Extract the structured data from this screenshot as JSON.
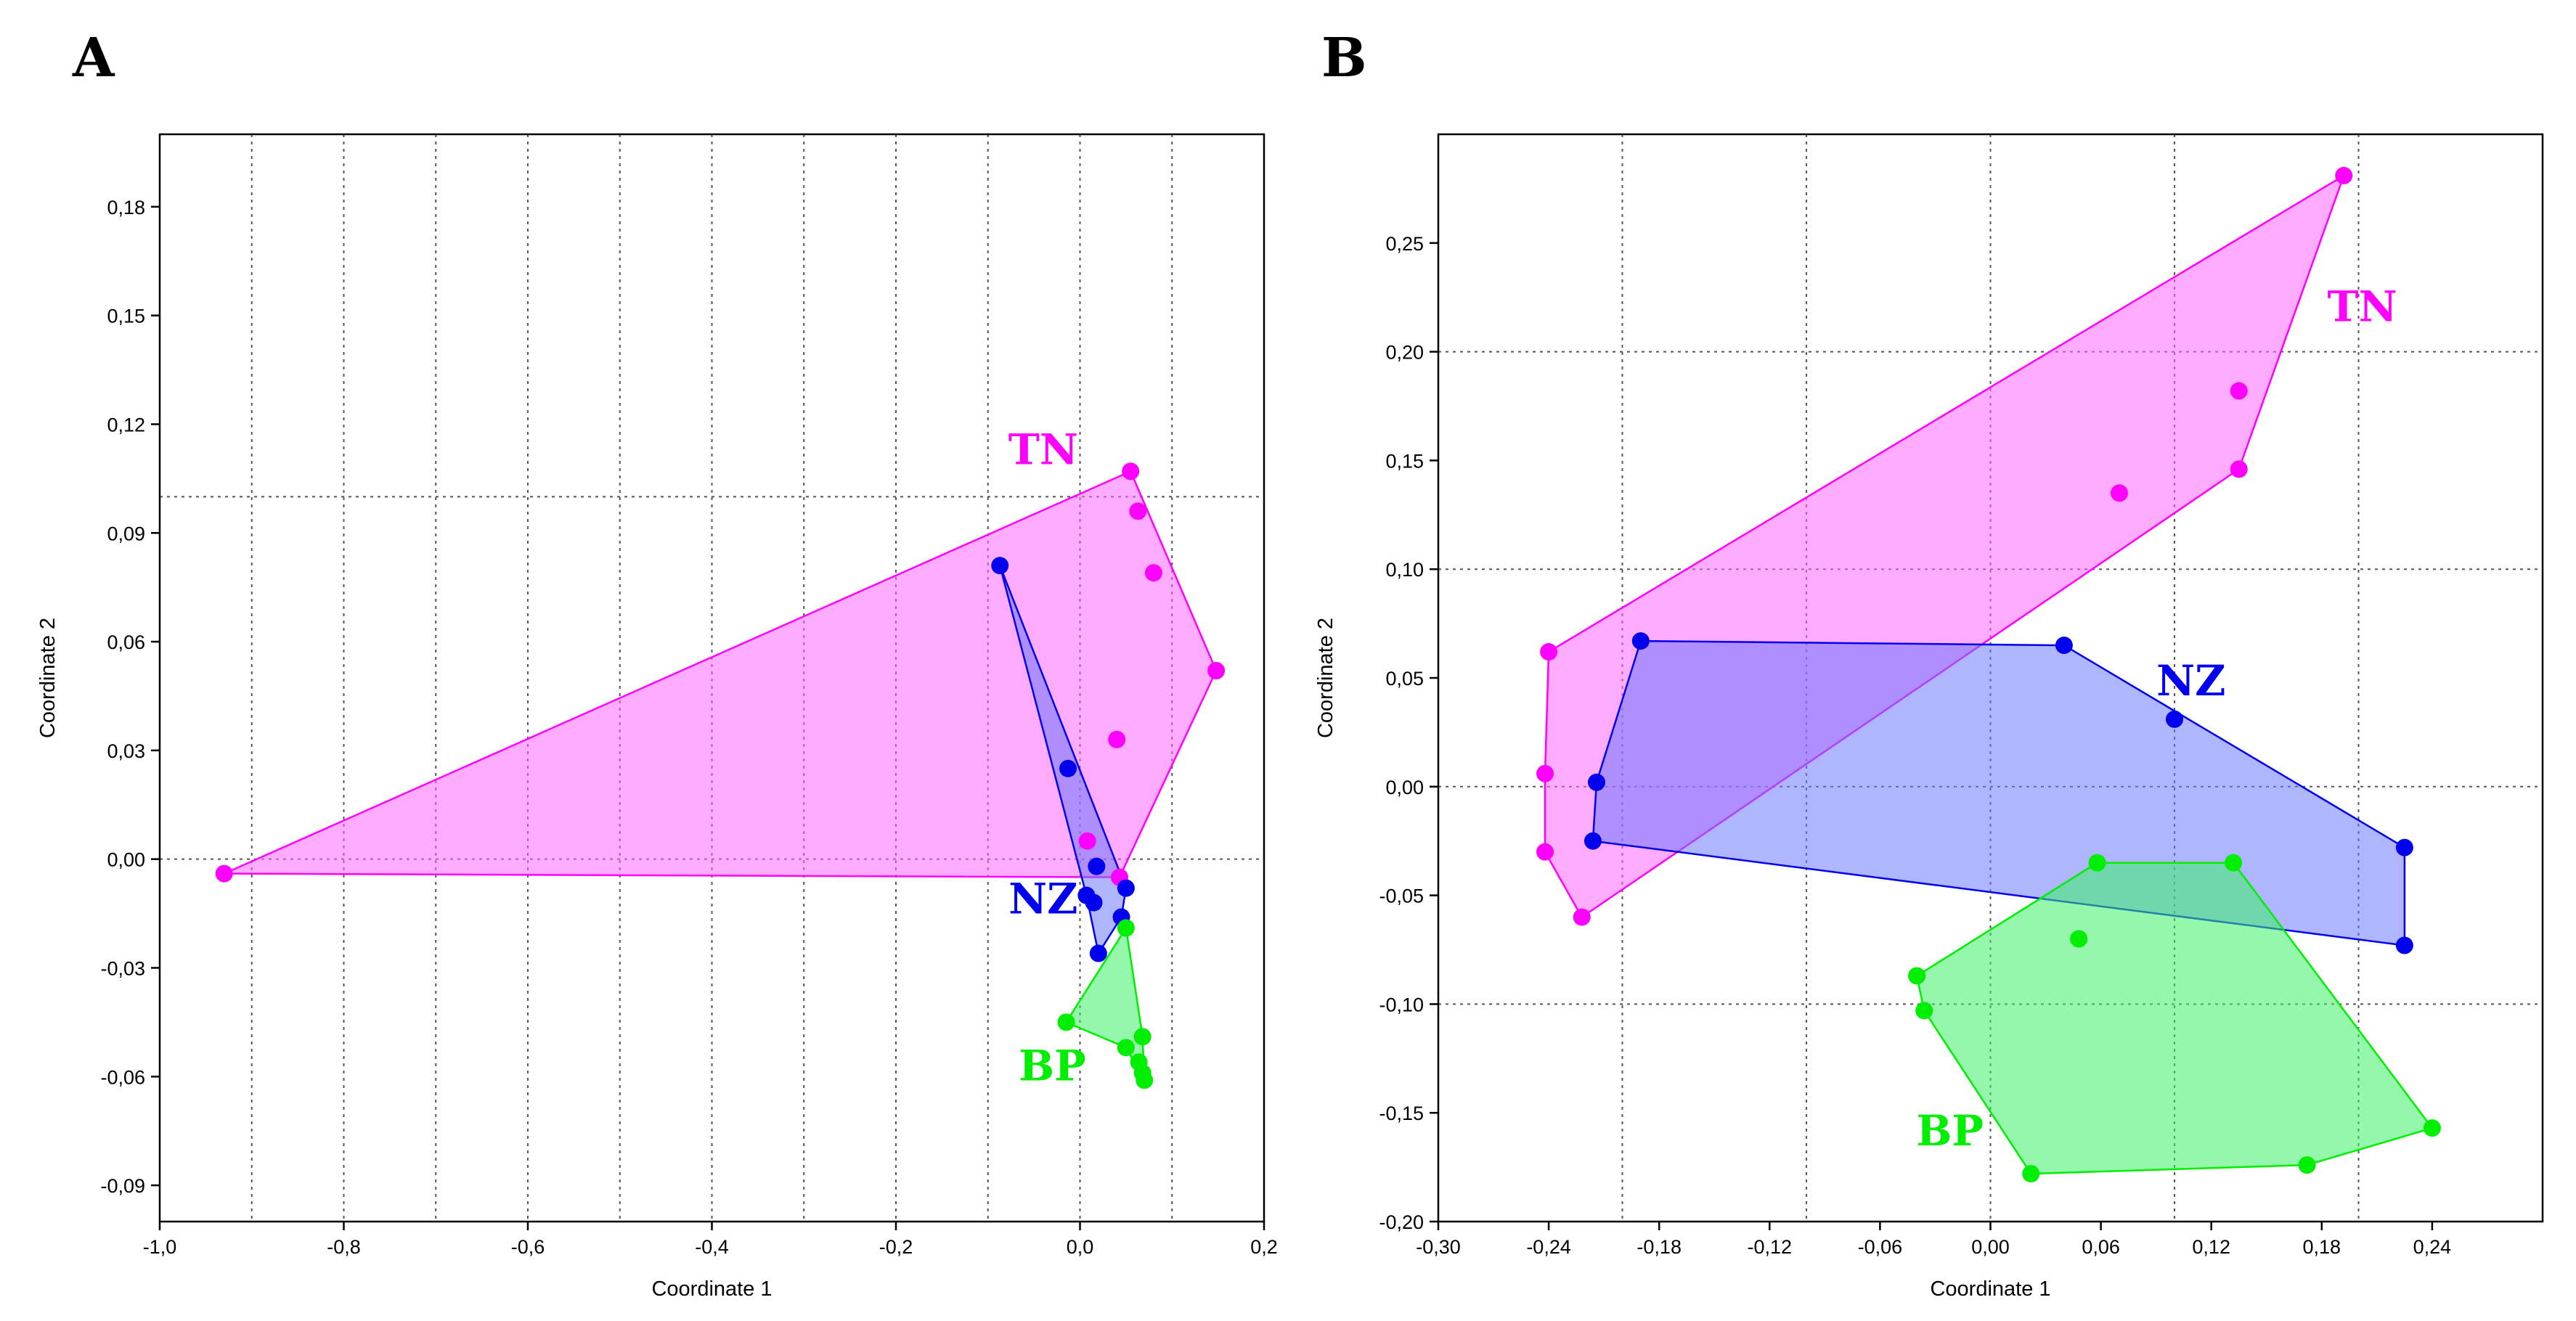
{
  "chart_data": [
    {
      "type": "scatter",
      "panel": "A",
      "xlabel": "Coordinate 1",
      "ylabel": "Coordinate 2",
      "xlim": [
        -1.0,
        0.2
      ],
      "ylim": [
        -0.1,
        0.2
      ],
      "x_ticks": [
        -1.0,
        -0.8,
        -0.6,
        -0.4,
        -0.2,
        0.0,
        0.2
      ],
      "x_tick_labels": [
        "-1,0",
        "-0,8",
        "-0,6",
        "-0,4",
        "-0,2",
        "0,0",
        "0,2"
      ],
      "y_ticks": [
        -0.09,
        -0.06,
        -0.03,
        0.0,
        0.03,
        0.06,
        0.09,
        0.12,
        0.15,
        0.18
      ],
      "y_tick_labels": [
        "-0,09",
        "-0,06",
        "-0,03",
        "0,00",
        "0,03",
        "0,06",
        "0,09",
        "0,12",
        "0,15",
        "0,18"
      ],
      "grid_x": [
        -0.9,
        -0.8,
        -0.7,
        -0.6,
        -0.5,
        -0.4,
        -0.3,
        -0.2,
        -0.1,
        0.0,
        0.1
      ],
      "grid_y": [
        0.0,
        0.1
      ],
      "series": [
        {
          "name": "TN",
          "color": "#ff00ff",
          "fill": "#ff66ff",
          "label_at": [
            -0.04,
            0.109
          ],
          "points": [
            [
              -0.93,
              -0.004
            ],
            [
              0.055,
              0.107
            ],
            [
              0.063,
              0.096
            ],
            [
              0.08,
              0.079
            ],
            [
              0.148,
              0.052
            ],
            [
              0.04,
              0.033
            ],
            [
              0.008,
              0.005
            ],
            [
              0.043,
              -0.005
            ]
          ],
          "hull": [
            [
              -0.93,
              -0.004
            ],
            [
              0.055,
              0.107
            ],
            [
              0.148,
              0.052
            ],
            [
              0.043,
              -0.005
            ]
          ]
        },
        {
          "name": "NZ",
          "color": "#0000ee",
          "fill": "#6e78ff",
          "label_at": [
            -0.04,
            -0.015
          ],
          "points": [
            [
              -0.087,
              0.081
            ],
            [
              -0.013,
              0.025
            ],
            [
              0.018,
              -0.002
            ],
            [
              0.05,
              -0.008
            ],
            [
              0.007,
              -0.01
            ],
            [
              0.015,
              -0.012
            ],
            [
              0.045,
              -0.016
            ],
            [
              0.02,
              -0.026
            ]
          ],
          "hull": [
            [
              -0.087,
              0.081
            ],
            [
              0.05,
              -0.008
            ],
            [
              0.045,
              -0.016
            ],
            [
              0.02,
              -0.026
            ],
            [
              0.007,
              -0.01
            ]
          ]
        },
        {
          "name": "BP",
          "color": "#00ee00",
          "fill": "#3cf068",
          "label_at": [
            -0.03,
            -0.061
          ],
          "points": [
            [
              0.05,
              -0.019
            ],
            [
              -0.015,
              -0.045
            ],
            [
              0.068,
              -0.049
            ],
            [
              0.05,
              -0.052
            ],
            [
              0.064,
              -0.056
            ],
            [
              0.068,
              -0.059
            ],
            [
              0.07,
              -0.061
            ]
          ],
          "hull": [
            [
              0.05,
              -0.019
            ],
            [
              0.068,
              -0.049
            ],
            [
              0.07,
              -0.061
            ],
            [
              0.05,
              -0.052
            ],
            [
              -0.015,
              -0.045
            ]
          ]
        }
      ]
    },
    {
      "type": "scatter",
      "panel": "B",
      "xlabel": "Coordinate 1",
      "ylabel": "Coordinate 2",
      "xlim": [
        -0.3,
        0.3
      ],
      "ylim": [
        -0.2,
        0.3
      ],
      "x_ticks": [
        -0.3,
        -0.24,
        -0.18,
        -0.12,
        -0.06,
        0.0,
        0.06,
        0.12,
        0.18,
        0.24
      ],
      "x_tick_labels": [
        "-0,30",
        "-0,24",
        "-0,18",
        "-0,12",
        "-0,06",
        "0,00",
        "0,06",
        "0,12",
        "0,18",
        "0,24"
      ],
      "y_ticks": [
        -0.2,
        -0.15,
        -0.1,
        -0.05,
        0.0,
        0.05,
        0.1,
        0.15,
        0.2,
        0.25
      ],
      "y_tick_labels": [
        "-0,20",
        "-0,15",
        "-0,10",
        "-0,05",
        "0,00",
        "0,05",
        "0,10",
        "0,15",
        "0,20",
        "0,25"
      ],
      "grid_x": [
        -0.2,
        -0.1,
        0.0,
        0.1,
        0.2
      ],
      "grid_y": [
        -0.1,
        0.0,
        0.1,
        0.2
      ],
      "series": [
        {
          "name": "TN",
          "color": "#ff00ff",
          "fill": "#ff66ff",
          "label_at": [
            0.202,
            0.214
          ],
          "points": [
            [
              0.192,
              0.281
            ],
            [
              0.135,
              0.182
            ],
            [
              0.135,
              0.146
            ],
            [
              0.07,
              0.135
            ],
            [
              -0.24,
              0.062
            ],
            [
              -0.242,
              0.006
            ],
            [
              -0.242,
              -0.03
            ],
            [
              -0.222,
              -0.06
            ]
          ],
          "hull": [
            [
              0.192,
              0.281
            ],
            [
              0.135,
              0.146
            ],
            [
              -0.222,
              -0.06
            ],
            [
              -0.242,
              -0.03
            ],
            [
              -0.242,
              0.006
            ],
            [
              -0.24,
              0.062
            ]
          ]
        },
        {
          "name": "NZ",
          "color": "#0000ee",
          "fill": "#6e78ff",
          "label_at": [
            0.109,
            0.042
          ],
          "points": [
            [
              -0.19,
              0.067
            ],
            [
              0.04,
              0.065
            ],
            [
              0.1,
              0.031
            ],
            [
              -0.214,
              0.002
            ],
            [
              -0.216,
              -0.025
            ],
            [
              0.225,
              -0.028
            ],
            [
              0.225,
              -0.073
            ]
          ],
          "hull": [
            [
              -0.19,
              0.067
            ],
            [
              0.04,
              0.065
            ],
            [
              0.225,
              -0.028
            ],
            [
              0.225,
              -0.073
            ],
            [
              -0.216,
              -0.025
            ],
            [
              -0.214,
              0.002
            ]
          ]
        },
        {
          "name": "BP",
          "color": "#00ee00",
          "fill": "#3cf068",
          "label_at": [
            -0.022,
            -0.165
          ],
          "points": [
            [
              0.058,
              -0.035
            ],
            [
              0.132,
              -0.035
            ],
            [
              0.048,
              -0.07
            ],
            [
              -0.04,
              -0.087
            ],
            [
              -0.036,
              -0.103
            ],
            [
              0.24,
              -0.157
            ],
            [
              0.172,
              -0.174
            ],
            [
              0.022,
              -0.178
            ]
          ],
          "hull": [
            [
              0.058,
              -0.035
            ],
            [
              0.132,
              -0.035
            ],
            [
              0.24,
              -0.157
            ],
            [
              0.172,
              -0.174
            ],
            [
              0.022,
              -0.178
            ],
            [
              -0.036,
              -0.103
            ],
            [
              -0.04,
              -0.087
            ]
          ]
        }
      ]
    }
  ]
}
